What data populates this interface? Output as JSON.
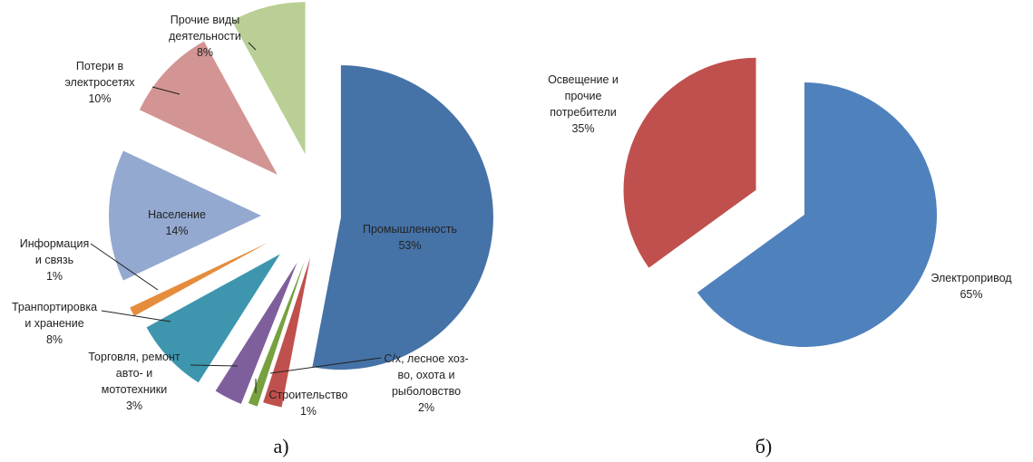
{
  "chart_data": [
    {
      "type": "pie",
      "caption": "а)",
      "slices": [
        {
          "label": "Промышленность",
          "value": 53,
          "pct": "53%",
          "color": "#4572a7"
        },
        {
          "label": "С/х, лесное хоз-во, охота и рыболовство",
          "value": 2,
          "pct": "2%",
          "color": "#c0504d"
        },
        {
          "label": "Строительство",
          "value": 1,
          "pct": "1%",
          "color": "#77a03f"
        },
        {
          "label": "Торговля, ремонт авто- и мототехники",
          "value": 3,
          "pct": "3%",
          "color": "#7e5f9b"
        },
        {
          "label": "Транпортировка и хранение",
          "value": 8,
          "pct": "8%",
          "color": "#3d96ae"
        },
        {
          "label": "Информация и связь",
          "value": 1,
          "pct": "1%",
          "color": "#e68c3d"
        },
        {
          "label": "Население",
          "value": 14,
          "pct": "14%",
          "color": "#93a9d0"
        },
        {
          "label": "Потери в электросетях",
          "value": 10,
          "pct": "10%",
          "color": "#d39593"
        },
        {
          "label": "Прочие виды деятельности",
          "value": 8,
          "pct": "8%",
          "color": "#b9cf95"
        }
      ]
    },
    {
      "type": "pie",
      "caption": "б)",
      "slices": [
        {
          "label": "Электропривод",
          "value": 65,
          "pct": "65%",
          "color": "#4f81bd"
        },
        {
          "label": "Освещение и прочие потребители",
          "value": 35,
          "pct": "35%",
          "color": "#c0504d"
        }
      ]
    }
  ],
  "labels": {
    "a": [
      {
        "lines": [
          "Промышленность",
          "53%"
        ]
      },
      {
        "lines": [
          "С/х, лесное хоз-",
          "во, охота и",
          "рыболовство",
          "2%"
        ]
      },
      {
        "lines": [
          "Строительство",
          "1%"
        ]
      },
      {
        "lines": [
          "Торговля, ремонт",
          "авто- и",
          "мототехники",
          "3%"
        ]
      },
      {
        "lines": [
          "Транпортировка",
          "и хранение",
          "8%"
        ]
      },
      {
        "lines": [
          "Информация",
          "и связь",
          "1%"
        ]
      },
      {
        "lines": [
          "Население",
          "14%"
        ]
      },
      {
        "lines": [
          "Потери в",
          "электросетях",
          "10%"
        ]
      },
      {
        "lines": [
          "Прочие виды",
          "деятельности",
          "8%"
        ]
      }
    ],
    "b": [
      {
        "lines": [
          "Электропривод",
          "65%"
        ]
      },
      {
        "lines": [
          "Освещение и",
          "прочие",
          "потребители",
          "35%"
        ]
      }
    ]
  }
}
